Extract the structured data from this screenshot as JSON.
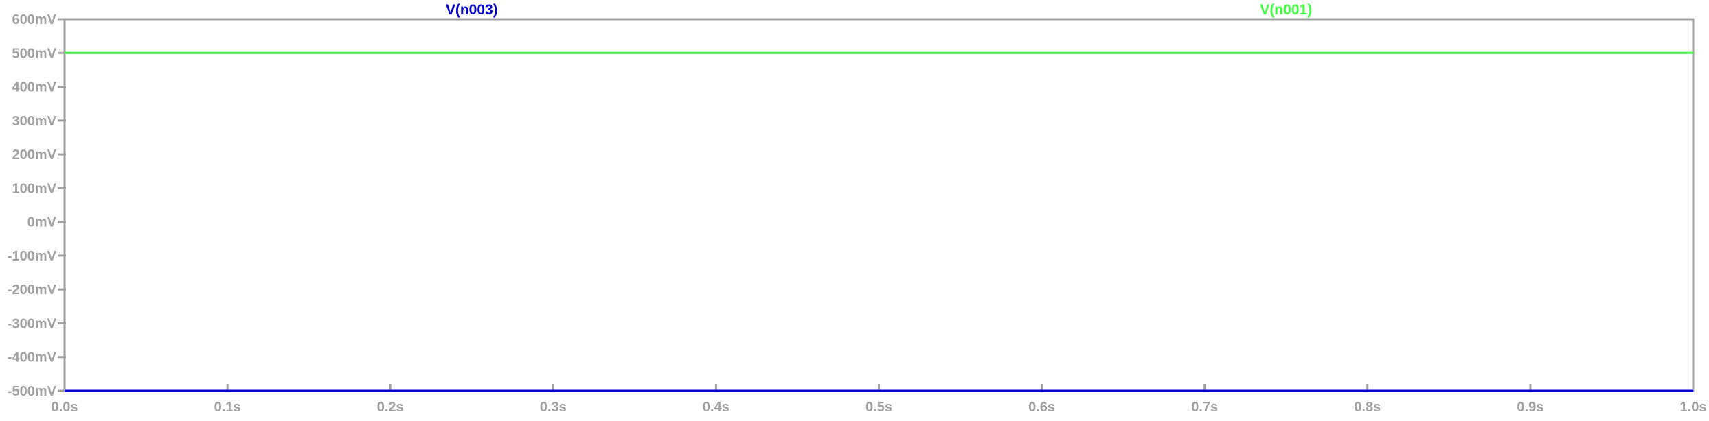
{
  "chart_data": {
    "type": "line",
    "title": "",
    "xlabel": "",
    "ylabel": "",
    "xlim": [
      0,
      1
    ],
    "ylim": [
      -500,
      600
    ],
    "x_unit": "s",
    "y_unit": "mV",
    "x_ticks": [
      0.0,
      0.1,
      0.2,
      0.3,
      0.4,
      0.5,
      0.6,
      0.7,
      0.8,
      0.9,
      1.0
    ],
    "x_tick_labels": [
      "0.0s",
      "0.1s",
      "0.2s",
      "0.3s",
      "0.4s",
      "0.5s",
      "0.6s",
      "0.7s",
      "0.8s",
      "0.9s",
      "1.0s"
    ],
    "y_ticks": [
      600,
      500,
      400,
      300,
      200,
      100,
      0,
      -100,
      -200,
      -300,
      -400,
      -500
    ],
    "y_tick_labels": [
      "600mV",
      "500mV",
      "400mV",
      "300mV",
      "200mV",
      "100mV",
      "0mV",
      "-100mV",
      "-200mV",
      "-300mV",
      "-400mV",
      "-500mV"
    ],
    "grid": false,
    "legend": "top",
    "colors": {
      "axis": "#a0a0a0",
      "background": "#ffffff"
    },
    "series": [
      {
        "name": "V(n003)",
        "color": "#0000d0",
        "x": [
          0.0,
          1.0
        ],
        "y": [
          -500,
          -500
        ]
      },
      {
        "name": "V(n001)",
        "color": "#40ff40",
        "x": [
          0.0,
          1.0
        ],
        "y": [
          500,
          500
        ]
      }
    ]
  }
}
